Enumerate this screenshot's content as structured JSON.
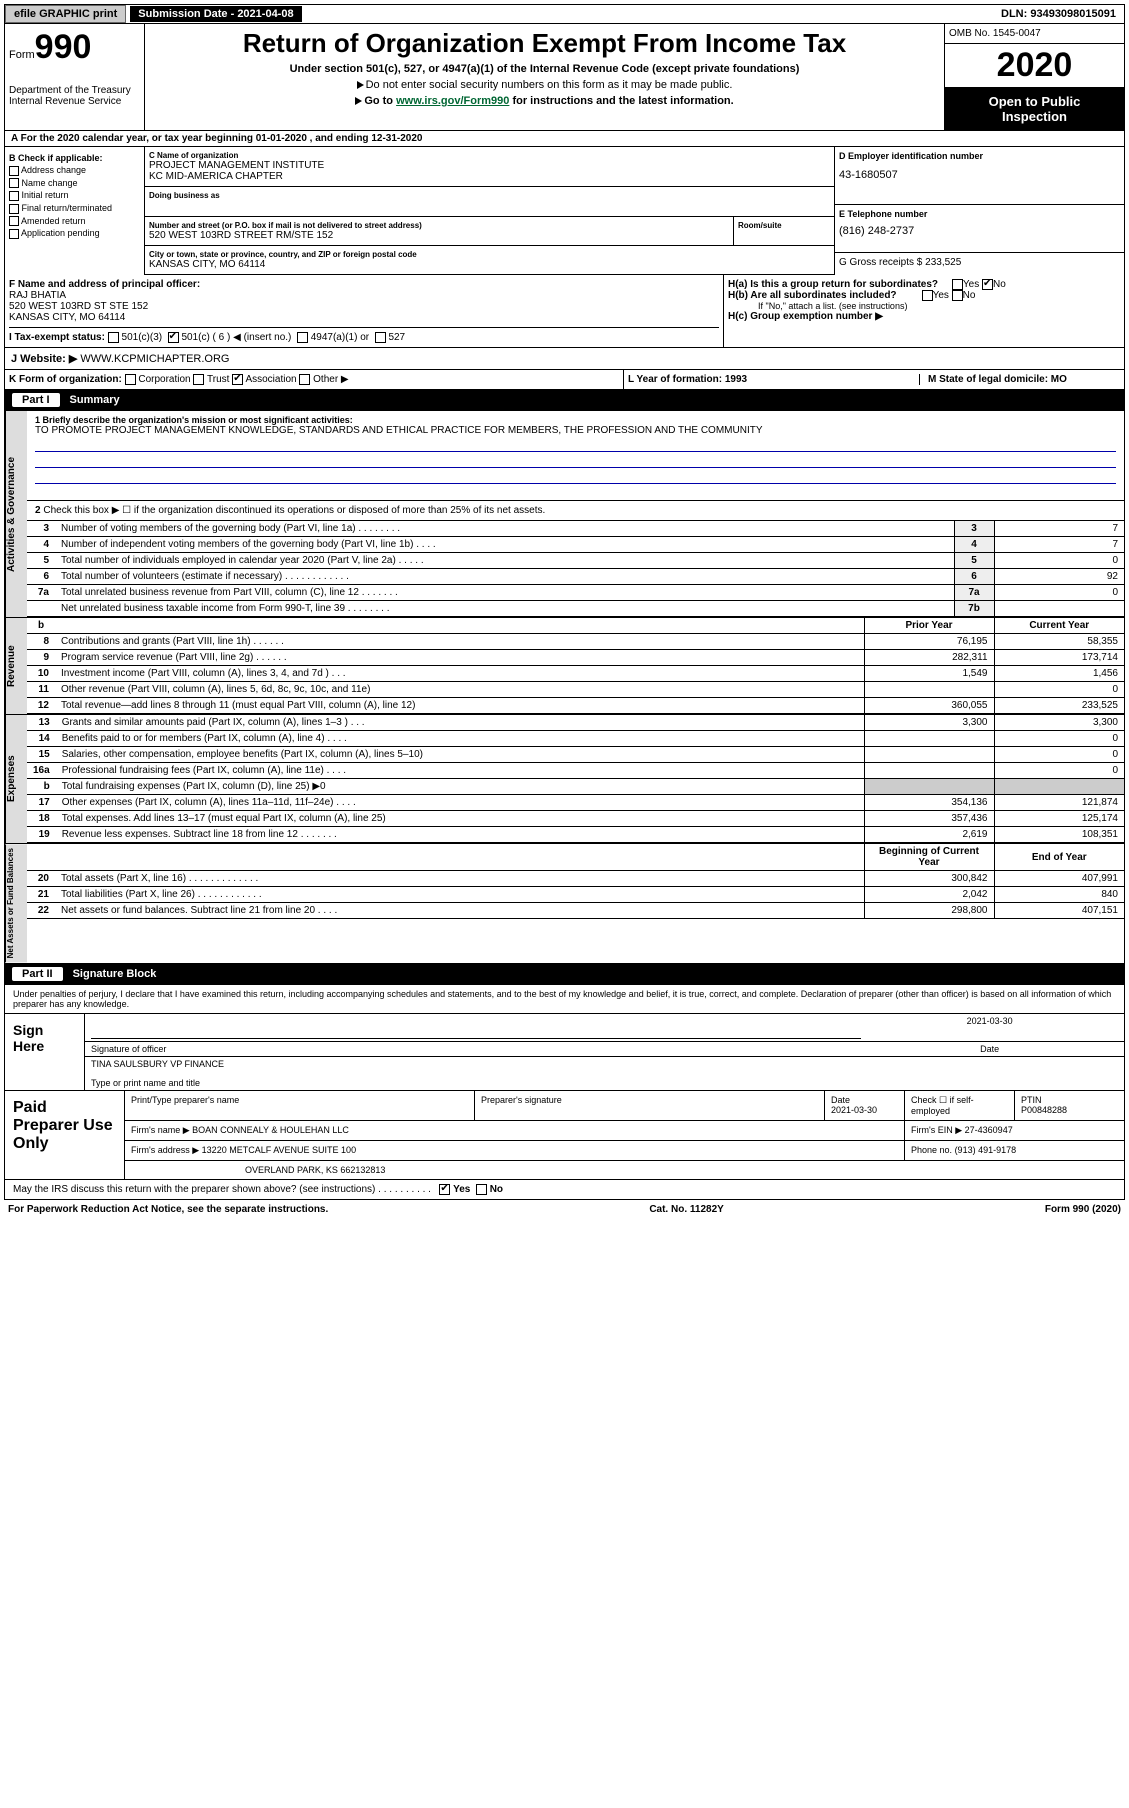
{
  "topbar": {
    "efile": "efile GRAPHIC print",
    "sub_label": "Submission Date - 2021-04-08",
    "dln": "DLN: 93493098015091"
  },
  "hdr": {
    "form_word": "Form",
    "form_no": "990",
    "dept1": "Department of the Treasury",
    "dept2": "Internal Revenue Service",
    "title": "Return of Organization Exempt From Income Tax",
    "sub": "Under section 501(c), 527, or 4947(a)(1) of the Internal Revenue Code (except private foundations)",
    "arrow1": "Do not enter social security numbers on this form as it may be made public.",
    "arrow2_a": "Go to ",
    "arrow2_link": "www.irs.gov/Form990",
    "arrow2_b": " for instructions and the latest information.",
    "omb": "OMB No. 1545-0047",
    "year": "2020",
    "public1": "Open to Public",
    "public2": "Inspection"
  },
  "row_a": "A For the 2020 calendar year, or tax year beginning 01-01-2020     , and ending 12-31-2020",
  "col_b": {
    "hdr": "B Check if applicable:",
    "i1": "Address change",
    "i2": "Name change",
    "i3": "Initial return",
    "i4": "Final return/terminated",
    "i5": "Amended return",
    "i6": "Application pending"
  },
  "col_c": {
    "name_lbl": "C Name of organization",
    "name1": "PROJECT MANAGEMENT INSTITUTE",
    "name2": "KC MID-AMERICA CHAPTER",
    "dba_lbl": "Doing business as",
    "addr_lbl": "Number and street (or P.O. box if mail is not delivered to street address)",
    "addr": "520 WEST 103RD STREET RM/STE 152",
    "room_lbl": "Room/suite",
    "city_lbl": "City or town, state or province, country, and ZIP or foreign postal code",
    "city": "KANSAS CITY, MO  64114"
  },
  "col_d": {
    "ein_lbl": "D Employer identification number",
    "ein": "43-1680507",
    "tel_lbl": "E Telephone number",
    "tel": "(816) 248-2737",
    "gross_lbl": "G Gross receipts $ 233,525"
  },
  "row_f": {
    "lbl": "F  Name and address of principal officer:",
    "name": "RAJ BHATIA",
    "a1": "520 WEST 103RD ST STE 152",
    "a2": "KANSAS CITY, MO  64114"
  },
  "row_h": {
    "ha": "H(a)  Is this a group return for subordinates?",
    "ha_yes": "Yes",
    "ha_no": "No",
    "hb": "H(b)  Are all subordinates included?",
    "hb_yes": "Yes",
    "hb_no": "No",
    "hb_note": "If \"No,\" attach a list. (see instructions)",
    "hc": "H(c)   Group exemption number ▶"
  },
  "row_i": {
    "lbl": "I     Tax-exempt status:",
    "o1": "501(c)(3)",
    "o2": "501(c) ( 6 ) ◀ (insert no.)",
    "o3": "4947(a)(1) or",
    "o4": "527"
  },
  "row_j": {
    "lbl": "J     Website: ▶",
    "val": " WWW.KCPMICHAPTER.ORG"
  },
  "row_k": {
    "lbl": "K Form of organization:",
    "o1": "Corporation",
    "o2": "Trust",
    "o3": "Association",
    "o4": "Other ▶",
    "l_lbl": "L Year of formation: 1993",
    "m_lbl": "M State of legal domicile: MO"
  },
  "part1": {
    "hdr_part": "Part I",
    "hdr_title": "Summary",
    "vtab1": "Activities & Governance",
    "vtab2": "Revenue",
    "vtab3": "Expenses",
    "vtab4": "Net Assets or Fund Balances",
    "l1_prompt": "1 Briefly describe the organization's mission or most significant activities:",
    "l1_val": "TO PROMOTE PROJECT MANAGEMENT KNOWLEDGE, STANDARDS AND ETHICAL PRACTICE FOR MEMBERS, THE PROFESSION AND THE COMMUNITY",
    "l2": "Check this box ▶ ☐ if the organization discontinued its operations or disposed of more than 25% of its net assets.",
    "rows_ag": [
      {
        "n": "3",
        "d": "Number of voting members of the governing body (Part VI, line 1a)   .   .   .   .   .   .   .   .",
        "b": "3",
        "v": "7"
      },
      {
        "n": "4",
        "d": "Number of independent voting members of the governing body (Part VI, line 1b)   .   .   .   .",
        "b": "4",
        "v": "7"
      },
      {
        "n": "5",
        "d": "Total number of individuals employed in calendar year 2020 (Part V, line 2a)   .   .   .   .   .",
        "b": "5",
        "v": "0"
      },
      {
        "n": "6",
        "d": "Total number of volunteers (estimate if necessary)   .   .   .   .   .   .   .   .   .   .   .   .",
        "b": "6",
        "v": "92"
      },
      {
        "n": "7a",
        "d": "Total unrelated business revenue from Part VIII, column (C), line 12   .   .   .   .   .   .   .",
        "b": "7a",
        "v": "0"
      },
      {
        "n": "",
        "d": "Net unrelated business taxable income from Form 990-T, line 39   .   .   .   .   .   .   .   .",
        "b": "7b",
        "v": ""
      }
    ],
    "hdr_prior": "Prior Year",
    "hdr_curr": "Current Year",
    "rows_rev": [
      {
        "n": "8",
        "d": "Contributions and grants (Part VIII, line 1h)   .   .   .   .   .   .",
        "p": "76,195",
        "c": "58,355"
      },
      {
        "n": "9",
        "d": "Program service revenue (Part VIII, line 2g)   .   .   .   .   .   .",
        "p": "282,311",
        "c": "173,714"
      },
      {
        "n": "10",
        "d": "Investment income (Part VIII, column (A), lines 3, 4, and 7d )   .   .   .",
        "p": "1,549",
        "c": "1,456"
      },
      {
        "n": "11",
        "d": "Other revenue (Part VIII, column (A), lines 5, 6d, 8c, 9c, 10c, and 11e)",
        "p": "",
        "c": "0"
      },
      {
        "n": "12",
        "d": "Total revenue—add lines 8 through 11 (must equal Part VIII, column (A), line 12)",
        "p": "360,055",
        "c": "233,525"
      }
    ],
    "rows_exp": [
      {
        "n": "13",
        "d": "Grants and similar amounts paid (Part IX, column (A), lines 1–3 )   .   .   .",
        "p": "3,300",
        "c": "3,300"
      },
      {
        "n": "14",
        "d": "Benefits paid to or for members (Part IX, column (A), line 4)   .   .   .   .",
        "p": "",
        "c": "0"
      },
      {
        "n": "15",
        "d": "Salaries, other compensation, employee benefits (Part IX, column (A), lines 5–10)",
        "p": "",
        "c": "0"
      },
      {
        "n": "16a",
        "d": "Professional fundraising fees (Part IX, column (A), line 11e)   .   .   .   .",
        "p": "",
        "c": "0"
      },
      {
        "n": "b",
        "d": "Total fundraising expenses (Part IX, column (D), line 25) ▶0",
        "p": "SHADE",
        "c": "SHADE"
      },
      {
        "n": "17",
        "d": "Other expenses (Part IX, column (A), lines 11a–11d, 11f–24e)   .   .   .   .",
        "p": "354,136",
        "c": "121,874"
      },
      {
        "n": "18",
        "d": "Total expenses. Add lines 13–17 (must equal Part IX, column (A), line 25)",
        "p": "357,436",
        "c": "125,174"
      },
      {
        "n": "19",
        "d": "Revenue less expenses. Subtract line 18 from line 12   .   .   .   .   .   .   .",
        "p": "2,619",
        "c": "108,351"
      }
    ],
    "hdr_boy": "Beginning of Current Year",
    "hdr_eoy": "End of Year",
    "rows_na": [
      {
        "n": "20",
        "d": "Total assets (Part X, line 16)   .   .   .   .   .   .   .   .   .   .   .   .   .",
        "p": "300,842",
        "c": "407,991"
      },
      {
        "n": "21",
        "d": "Total liabilities (Part X, line 26)   .   .   .   .   .   .   .   .   .   .   .   .",
        "p": "2,042",
        "c": "840"
      },
      {
        "n": "22",
        "d": "Net assets or fund balances. Subtract line 21 from line 20   .   .   .   .",
        "p": "298,800",
        "c": "407,151"
      }
    ]
  },
  "part2": {
    "hdr_part": "Part II",
    "hdr_title": "Signature Block",
    "decl": "Under penalties of perjury, I declare that I have examined this return, including accompanying schedules and statements, and to the best of my knowledge and belief, it is true, correct, and complete. Declaration of preparer (other than officer) is based on all information of which preparer has any knowledge.",
    "sign_here": "Sign Here",
    "sig_lbl": "Signature of officer",
    "sig_date": "2021-03-30",
    "sig_date_lbl": "Date",
    "sig_name": "TINA SAULSBURY VP FINANCE",
    "sig_name_lbl": "Type or print name and title",
    "paid_prep": "Paid Preparer Use Only",
    "pp_name_lbl": "Print/Type preparer's name",
    "pp_sig_lbl": "Preparer's signature",
    "pp_date_lbl": "Date",
    "pp_date": "2021-03-30",
    "pp_check_lbl": "Check ☐ if self-employed",
    "pp_ptin_lbl": "PTIN",
    "pp_ptin": "P00848288",
    "firm_name_lbl": "Firm's name    ▶",
    "firm_name": "BOAN CONNEALY & HOULEHAN LLC",
    "firm_ein_lbl": "Firm's EIN ▶",
    "firm_ein": "27-4360947",
    "firm_addr_lbl": "Firm's address ▶",
    "firm_addr1": "13220 METCALF AVENUE SUITE 100",
    "firm_addr2": "OVERLAND PARK, KS  662132813",
    "phone_lbl": "Phone no.",
    "phone": "(913) 491-9178",
    "discuss": "May the IRS discuss this return with the preparer shown above? (see instructions)   .   .   .   .   .   .   .   .   .   .",
    "discuss_yes": "Yes",
    "discuss_no": "No"
  },
  "footer": {
    "l": "For Paperwork Reduction Act Notice, see the separate instructions.",
    "m": "Cat. No. 11282Y",
    "r": "Form 990 (2020)"
  }
}
